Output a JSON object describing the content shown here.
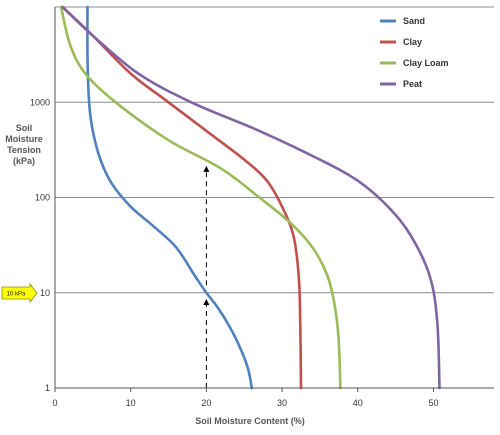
{
  "chart_data": {
    "type": "line",
    "xlabel": "Soil Moisture Content (%)",
    "ylabel_lines": [
      "Soil",
      "Moisture",
      "Tension",
      "(kPa)"
    ],
    "x_ticks": [
      "0",
      "10",
      "20",
      "30",
      "40",
      "50"
    ],
    "y_ticks": [
      "1",
      "10",
      "100",
      "1000"
    ],
    "xlim": [
      0,
      58
    ],
    "ylim": [
      1,
      10000
    ],
    "y_scale": "log",
    "grid": "horizontal",
    "legend_placement": "top-right",
    "series": [
      {
        "name": "Sand",
        "color": "#4f81bd",
        "points": [
          [
            4.3,
            10000
          ],
          [
            4.3,
            3000
          ],
          [
            4.5,
            1000
          ],
          [
            5,
            500
          ],
          [
            6,
            250
          ],
          [
            7.5,
            140
          ],
          [
            10,
            80
          ],
          [
            13,
            50
          ],
          [
            16,
            30
          ],
          [
            18.5,
            15
          ],
          [
            20,
            10
          ],
          [
            21.5,
            7
          ],
          [
            23,
            4.5
          ],
          [
            24.5,
            2.6
          ],
          [
            25.5,
            1.6
          ],
          [
            26,
            1
          ]
        ]
      },
      {
        "name": "Clay",
        "color": "#c0504d",
        "points": [
          [
            1,
            10000
          ],
          [
            5,
            5000
          ],
          [
            10,
            2000
          ],
          [
            15,
            1000
          ],
          [
            20,
            500
          ],
          [
            25,
            250
          ],
          [
            28,
            150
          ],
          [
            30,
            80
          ],
          [
            31.5,
            40
          ],
          [
            32.2,
            15
          ],
          [
            32.4,
            5
          ],
          [
            32.5,
            1
          ]
        ]
      },
      {
        "name": "Clay Loam",
        "color": "#9bbb59",
        "points": [
          [
            0.8,
            10000
          ],
          [
            2,
            4000
          ],
          [
            4,
            2000
          ],
          [
            8,
            1000
          ],
          [
            15,
            400
          ],
          [
            22,
            200
          ],
          [
            27,
            100
          ],
          [
            31,
            55
          ],
          [
            34,
            30
          ],
          [
            36,
            15
          ],
          [
            37,
            7
          ],
          [
            37.5,
            3
          ],
          [
            37.7,
            1
          ]
        ]
      },
      {
        "name": "Peat",
        "color": "#8064a2",
        "points": [
          [
            1,
            10000
          ],
          [
            5,
            5000
          ],
          [
            11,
            2000
          ],
          [
            18,
            1000
          ],
          [
            27,
            500
          ],
          [
            35,
            250
          ],
          [
            40,
            150
          ],
          [
            44,
            80
          ],
          [
            47,
            40
          ],
          [
            49.5,
            15
          ],
          [
            50.5,
            5
          ],
          [
            50.8,
            1
          ]
        ]
      }
    ],
    "annotations": [
      {
        "type": "dashed-arrow",
        "x": 20,
        "from": 1,
        "to": 8
      },
      {
        "type": "dashed-arrow",
        "x": 20,
        "from": 12,
        "to": 200
      },
      {
        "type": "marker",
        "label": "10 kPa",
        "y": 10,
        "color": "#ffff00"
      }
    ]
  }
}
